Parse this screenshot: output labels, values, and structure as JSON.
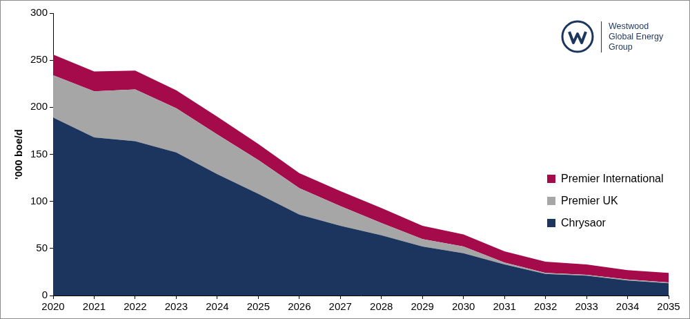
{
  "chart_data": {
    "type": "stacked_area",
    "y_label": "'000 boe/d",
    "annotations": [
      "Westwood",
      "Global Energy",
      "Group"
    ],
    "categories": [
      "2020",
      "2021",
      "2022",
      "2023",
      "2024",
      "2025",
      "2026",
      "2027",
      "2028",
      "2029",
      "2030",
      "2031",
      "2032",
      "2033",
      "2034",
      "2035"
    ],
    "series": [
      {
        "name": "Chrysaor",
        "color": "#1c355e",
        "values": [
          189,
          168,
          164,
          152,
          129,
          108,
          86,
          74,
          64,
          52,
          45,
          33,
          23,
          21,
          16,
          13
        ]
      },
      {
        "name": "Premier UK",
        "color": "#a6a6a6",
        "values": [
          45,
          49,
          55,
          47,
          42,
          36,
          28,
          21,
          13,
          8,
          7,
          2,
          1,
          1,
          1,
          1
        ]
      },
      {
        "name": "Premier International",
        "color": "#a50a4a",
        "values": [
          22,
          21,
          20,
          19,
          19,
          17,
          16,
          16,
          16,
          14,
          13,
          12,
          12,
          11,
          10,
          10
        ]
      }
    ],
    "ylim": [
      0,
      300
    ],
    "yticks": [
      0,
      50,
      100,
      150,
      200,
      250,
      300
    ],
    "stacked": true,
    "grid": false,
    "legend": "right"
  }
}
